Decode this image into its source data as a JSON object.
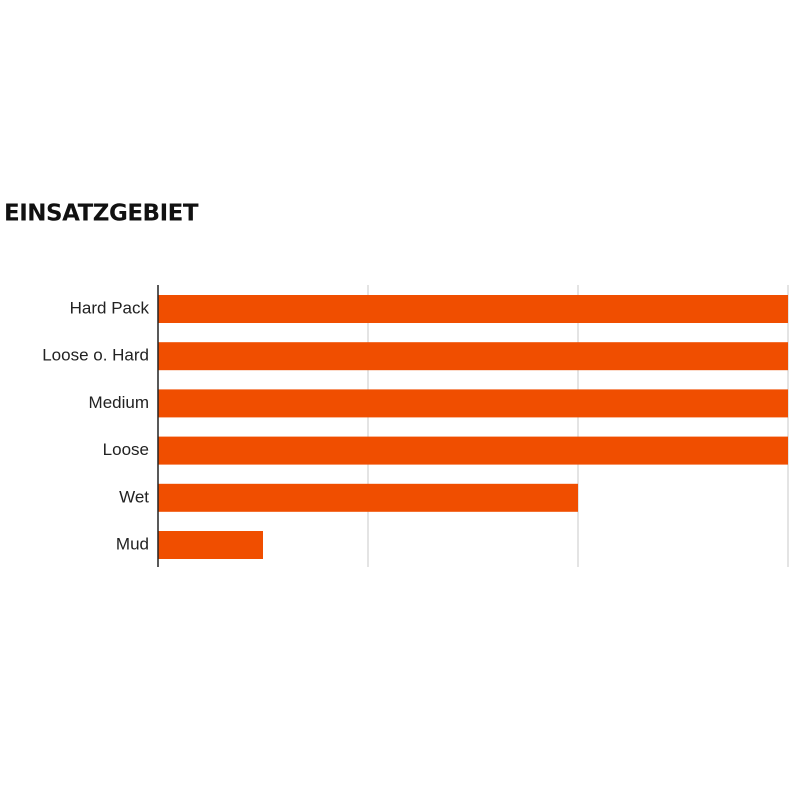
{
  "chart_data": {
    "type": "bar",
    "orientation": "horizontal",
    "title": "EINSATZGEBIET",
    "categories": [
      "Hard Pack",
      "Loose o. Hard",
      "Medium",
      "Loose",
      "Wet",
      "Mud"
    ],
    "values": [
      3,
      3,
      3,
      3,
      2,
      0.5
    ],
    "color": "#f04e00",
    "xlim": [
      0,
      3
    ],
    "xticks": [
      0,
      1,
      2,
      3
    ],
    "grid": true
  }
}
